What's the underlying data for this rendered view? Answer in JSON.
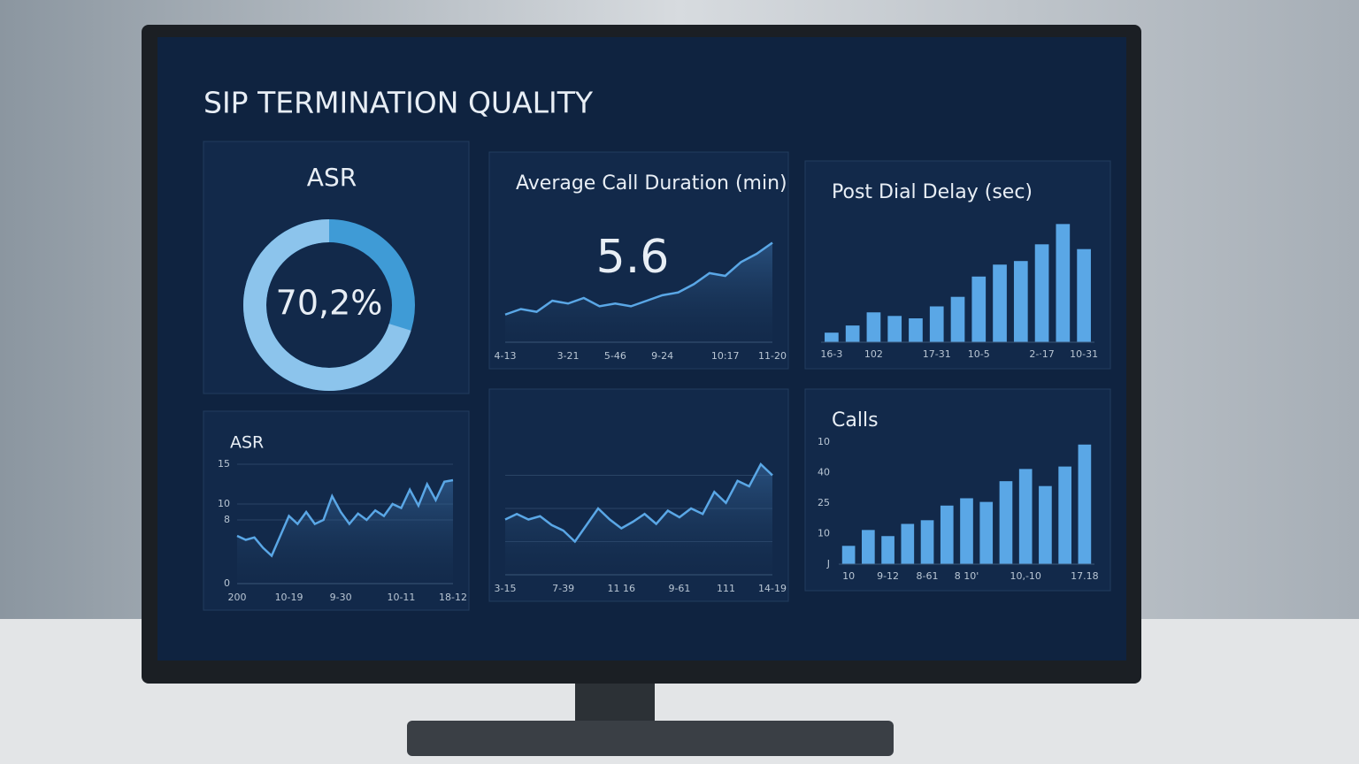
{
  "title": "SIP TERMINATION QUALITY",
  "chart_data": [
    {
      "type": "donut",
      "title": "ASR",
      "values": [
        70.2
      ],
      "value_labels": [
        "70,2%"
      ],
      "ylim": [
        0,
        100
      ],
      "color": "#8cc4ec",
      "rest_color": "#3f9bd6"
    },
    {
      "type": "line",
      "title": "Average Call Duration (min)",
      "kpi": 5.6,
      "color": "#5aa7e6",
      "categories": [
        "4-13",
        null,
        null,
        null,
        "3-21",
        null,
        null,
        "5-46",
        null,
        null,
        "9-24",
        null,
        null,
        null,
        "10:17",
        null,
        null,
        "11-20"
      ],
      "values": [
        3.0,
        3.2,
        3.1,
        3.5,
        3.4,
        3.6,
        3.3,
        3.4,
        3.3,
        3.5,
        3.7,
        3.8,
        4.1,
        4.5,
        4.4,
        4.9,
        5.2,
        5.6
      ],
      "ylim": [
        2.0,
        6.0
      ]
    },
    {
      "type": "bar",
      "title": "Post Dial Delay (sec)",
      "color": "#5aa7e6",
      "categories": [
        "16-3",
        null,
        "102",
        null,
        null,
        "17-31",
        null,
        "10-5",
        null,
        null,
        "2-·17",
        null,
        "10-31"
      ],
      "values": [
        0.8,
        1.4,
        2.5,
        2.2,
        2.0,
        3.0,
        3.8,
        5.5,
        6.5,
        6.8,
        8.2,
        9.9,
        7.8
      ],
      "ylim": [
        0,
        10
      ]
    },
    {
      "type": "line",
      "title": "ASR",
      "color": "#5aa7e6",
      "categories": [
        "200",
        null,
        null,
        null,
        null,
        null,
        "10-19",
        null,
        null,
        null,
        null,
        null,
        "9-30",
        null,
        null,
        null,
        null,
        null,
        null,
        "10-11",
        null,
        null,
        null,
        null,
        null,
        "18-12"
      ],
      "values": [
        6,
        5.5,
        5.8,
        4.5,
        3.5,
        6,
        8.5,
        7.5,
        9,
        7.5,
        8,
        11,
        9,
        7.5,
        8.8,
        8,
        9.2,
        8.5,
        10,
        9.5,
        11.8,
        9.8,
        12.5,
        10.5,
        12.8,
        13
      ],
      "ylim": [
        0,
        15
      ],
      "yticks": [
        0,
        8,
        10,
        15
      ],
      "grid": true
    },
    {
      "type": "line",
      "color": "#5aa7e6",
      "categories": [
        "3-15",
        null,
        null,
        null,
        null,
        "7-39",
        null,
        null,
        null,
        null,
        "11 16",
        null,
        null,
        null,
        null,
        "9-61",
        null,
        null,
        null,
        "111",
        null,
        null,
        null,
        "14-19"
      ],
      "values": [
        5,
        5.5,
        5,
        5.3,
        4.5,
        4,
        3,
        4.5,
        6,
        5,
        4.2,
        4.8,
        5.5,
        4.6,
        5.8,
        5.2,
        6,
        5.5,
        7.5,
        6.5,
        8.5,
        8,
        10,
        9
      ],
      "ylim": [
        0,
        12
      ],
      "grid": true
    },
    {
      "type": "bar",
      "title": "Calls",
      "color": "#5aa7e6",
      "categories": [
        "10",
        null,
        "9-12",
        null,
        "8-61",
        null,
        "8 10'",
        null,
        null,
        "10,-10",
        null,
        null,
        "17.18"
      ],
      "values": [
        1.5,
        2.8,
        2.3,
        3.3,
        3.6,
        4.8,
        5.4,
        5.1,
        6.8,
        7.8,
        6.4,
        8.0,
        9.8
      ],
      "ylim": [
        0,
        10
      ],
      "y_labels": [
        "10",
        "40",
        "25",
        "10",
        "J"
      ]
    }
  ]
}
